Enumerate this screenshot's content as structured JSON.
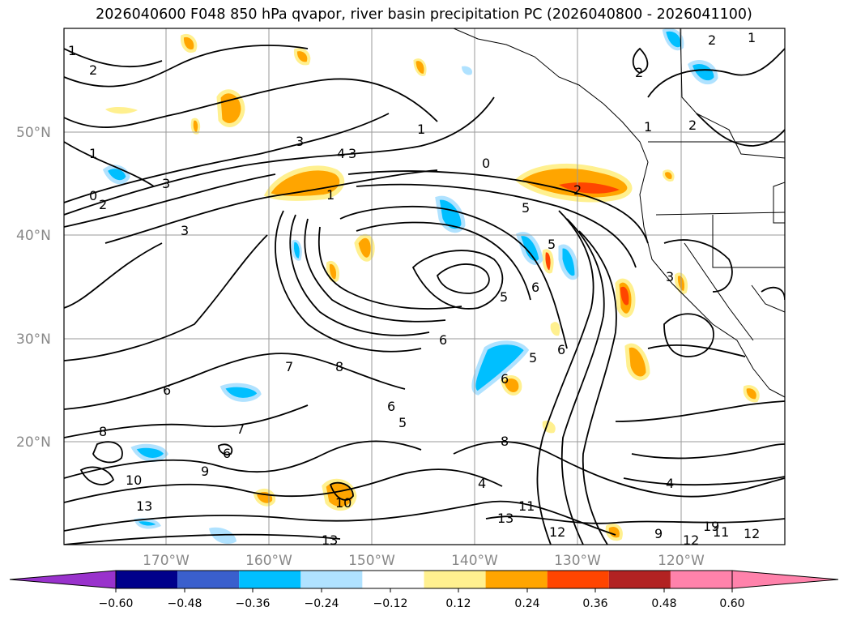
{
  "title": "2026040600 F048 850 hPa qvapor, river basin precipitation PC (2026040800 - 2026041100)",
  "map": {
    "lat_labels": [
      "50°N",
      "40°N",
      "30°N",
      "20°N"
    ],
    "lon_labels": [
      "170°W",
      "160°W",
      "150°W",
      "140°W",
      "130°W",
      "120°W"
    ],
    "contour_labels": [
      "1",
      "2",
      "1",
      "2",
      "2",
      "2",
      "1",
      "1",
      "3",
      "4",
      "3",
      "1",
      "0",
      "2",
      "3",
      "3",
      "0",
      "5",
      "1",
      "2",
      "5",
      "5",
      "6",
      "5",
      "6",
      "6",
      "6",
      "7",
      "8",
      "6",
      "6",
      "5",
      "8",
      "7",
      "6",
      "9",
      "8",
      "10",
      "13",
      "10",
      "13",
      "11",
      "13",
      "12",
      "9",
      "12",
      "11",
      "12",
      "4",
      "19",
      "4",
      "3"
    ]
  },
  "colorbar": {
    "tick_labels": [
      "−0.60",
      "−0.48",
      "−0.36",
      "−0.24",
      "−0.12",
      "0.12",
      "0.24",
      "0.36",
      "0.48",
      "0.60"
    ],
    "colors": {
      "below": "#9932cc",
      "bins": [
        "#00008b",
        "#3a5fcd",
        "#00bfff",
        "#b0e2ff",
        "#ffffff",
        "#fff08f",
        "#ffa500",
        "#ff4500",
        "#b22222",
        "#ff82ab"
      ],
      "above": "#ff82ab"
    }
  }
}
